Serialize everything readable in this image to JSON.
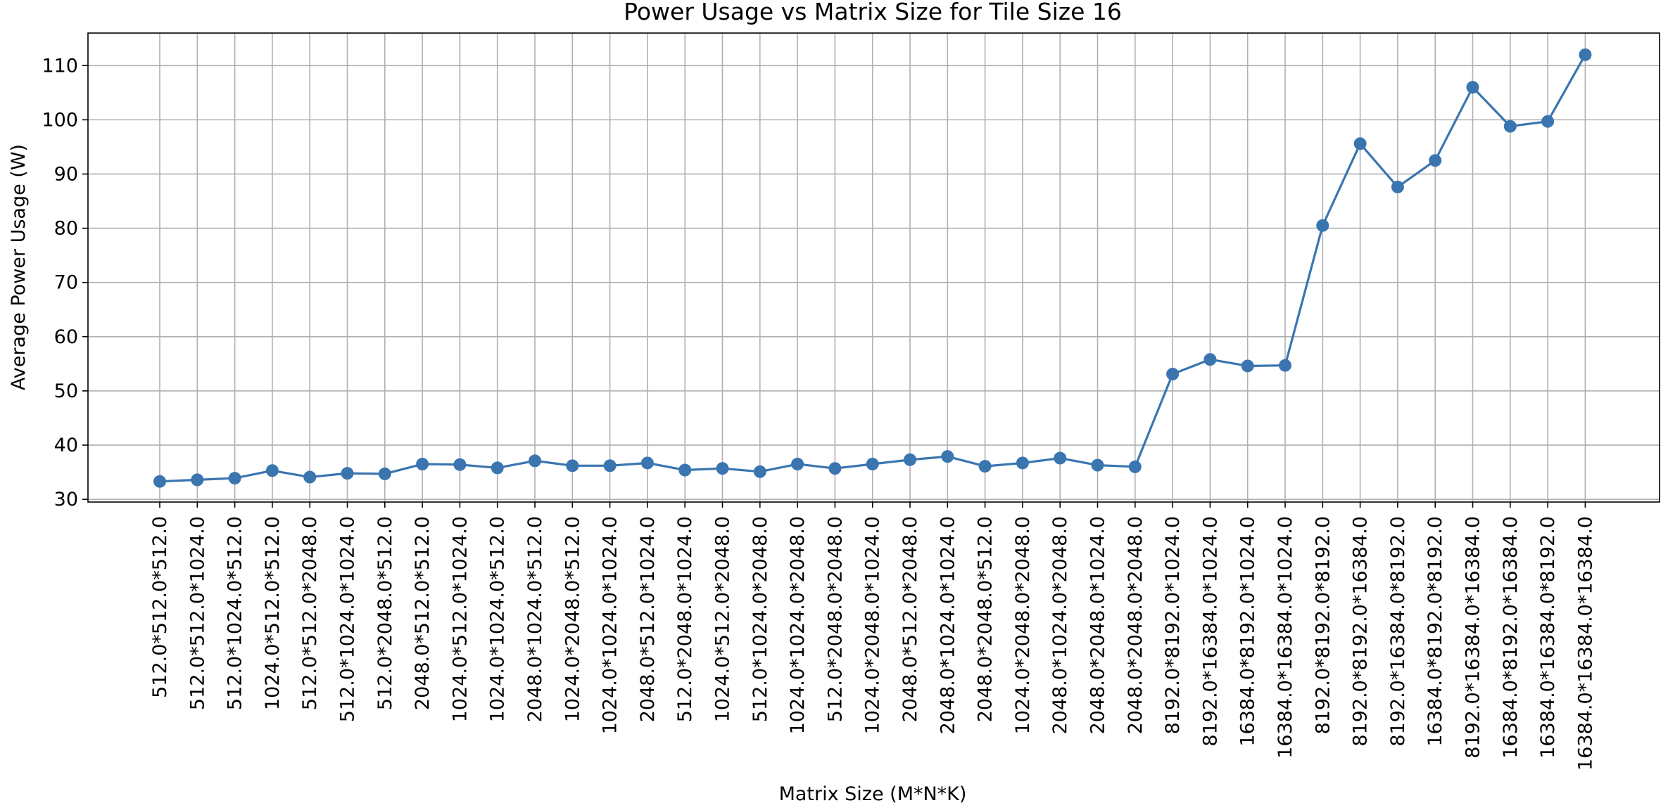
{
  "chart_data": {
    "type": "line",
    "title": "Power Usage vs Matrix Size for Tile Size 16",
    "xlabel": "Matrix Size (M*N*K)",
    "ylabel": "Average Power Usage (W)",
    "ylim": [
      29.5,
      116
    ],
    "yticks": [
      30,
      40,
      50,
      60,
      70,
      80,
      90,
      100,
      110
    ],
    "grid": true,
    "series_color": "#3a75b0",
    "categories": [
      "512.0*512.0*512.0",
      "512.0*512.0*1024.0",
      "512.0*1024.0*512.0",
      "1024.0*512.0*512.0",
      "512.0*512.0*2048.0",
      "512.0*1024.0*1024.0",
      "512.0*2048.0*512.0",
      "2048.0*512.0*512.0",
      "1024.0*512.0*1024.0",
      "1024.0*1024.0*512.0",
      "2048.0*1024.0*512.0",
      "1024.0*2048.0*512.0",
      "1024.0*1024.0*1024.0",
      "2048.0*512.0*1024.0",
      "512.0*2048.0*1024.0",
      "1024.0*512.0*2048.0",
      "512.0*1024.0*2048.0",
      "1024.0*1024.0*2048.0",
      "512.0*2048.0*2048.0",
      "1024.0*2048.0*1024.0",
      "2048.0*512.0*2048.0",
      "2048.0*1024.0*1024.0",
      "2048.0*2048.0*512.0",
      "1024.0*2048.0*2048.0",
      "2048.0*1024.0*2048.0",
      "2048.0*2048.0*1024.0",
      "2048.0*2048.0*2048.0",
      "8192.0*8192.0*1024.0",
      "8192.0*16384.0*1024.0",
      "16384.0*8192.0*1024.0",
      "16384.0*16384.0*1024.0",
      "8192.0*8192.0*8192.0",
      "8192.0*8192.0*16384.0",
      "8192.0*16384.0*8192.0",
      "16384.0*8192.0*8192.0",
      "8192.0*16384.0*16384.0",
      "16384.0*8192.0*16384.0",
      "16384.0*16384.0*8192.0",
      "16384.0*16384.0*16384.0"
    ],
    "values": [
      33.3,
      33.6,
      33.9,
      35.3,
      34.1,
      34.8,
      34.7,
      36.5,
      36.4,
      35.8,
      37.1,
      36.2,
      36.2,
      36.7,
      35.4,
      35.7,
      35.1,
      36.5,
      35.7,
      36.5,
      37.3,
      37.9,
      36.1,
      36.7,
      37.6,
      36.3,
      36.0,
      53.1,
      55.8,
      54.6,
      54.7,
      80.5,
      95.6,
      87.6,
      92.5,
      106.0,
      98.8,
      99.7,
      112.0
    ]
  }
}
